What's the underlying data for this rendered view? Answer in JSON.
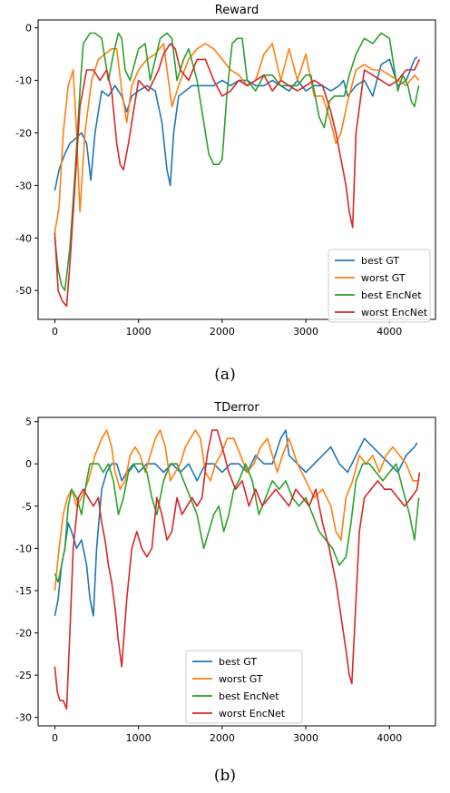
{
  "chart_data": [
    {
      "type": "line",
      "title": "Reward",
      "caption": "(a)",
      "xlim": [
        -200,
        4550
      ],
      "ylim": [
        -55.5,
        1.5
      ],
      "xticks": [
        0,
        1000,
        2000,
        3000,
        4000
      ],
      "yticks": [
        0,
        -10,
        -20,
        -30,
        -40,
        -50
      ],
      "legend_position": "lower-right",
      "series": [
        {
          "name": "best GT",
          "color": "#1f77b4",
          "x": [
            0,
            50,
            120,
            180,
            250,
            320,
            380,
            430,
            480,
            560,
            640,
            720,
            800,
            860,
            920,
            1000,
            1100,
            1200,
            1280,
            1340,
            1380,
            1420,
            1480,
            1560,
            1640,
            1700,
            1800,
            1900,
            2000,
            2100,
            2200,
            2300,
            2400,
            2500,
            2600,
            2700,
            2800,
            2900,
            3000,
            3100,
            3200,
            3300,
            3400,
            3450,
            3500,
            3600,
            3700,
            3800,
            3900,
            4000,
            4100,
            4200,
            4300,
            4330
          ],
          "y": [
            -31,
            -27,
            -24,
            -22,
            -21,
            -20,
            -22,
            -29,
            -20,
            -12,
            -13,
            -11,
            -13,
            -16,
            -13,
            -12,
            -11,
            -12,
            -18,
            -27,
            -30,
            -20,
            -13,
            -12,
            -11,
            -11,
            -11,
            -11,
            -10,
            -11,
            -10,
            -10,
            -11,
            -11,
            -10,
            -11,
            -12,
            -10,
            -12,
            -11,
            -11,
            -12,
            -11,
            -10,
            -13,
            -11,
            -10,
            -13,
            -7,
            -6,
            -11,
            -10,
            -6,
            -5.5
          ]
        },
        {
          "name": "worst GT",
          "color": "#ff7f0e",
          "x": [
            0,
            50,
            100,
            160,
            220,
            260,
            300,
            360,
            440,
            520,
            600,
            680,
            740,
            800,
            860,
            920,
            1000,
            1100,
            1200,
            1300,
            1400,
            1500,
            1600,
            1700,
            1800,
            1900,
            2000,
            2100,
            2200,
            2300,
            2400,
            2500,
            2600,
            2700,
            2800,
            2900,
            3000,
            3100,
            3200,
            3300,
            3360,
            3420,
            3500,
            3600,
            3700,
            3800,
            3900,
            4000,
            4100,
            4200,
            4300,
            4350
          ],
          "y": [
            -39,
            -34,
            -20,
            -11,
            -8,
            -20,
            -35,
            -20,
            -10,
            -6,
            -5,
            -4,
            -4,
            -12,
            -18,
            -11,
            -8,
            -6,
            -5,
            -3,
            -15,
            -10,
            -6,
            -4,
            -3,
            -4,
            -6,
            -8,
            -9,
            -11,
            -10,
            -5,
            -3,
            -10,
            -4,
            -10,
            -5,
            -13,
            -13,
            -18,
            -22,
            -20,
            -14,
            -8,
            -7,
            -8,
            -8,
            -9,
            -10,
            -11,
            -9,
            -10
          ]
        },
        {
          "name": "best EncNet",
          "color": "#2ca02c",
          "x": [
            0,
            40,
            80,
            120,
            180,
            240,
            300,
            340,
            380,
            420,
            480,
            560,
            600,
            640,
            700,
            760,
            800,
            840,
            900,
            1000,
            1080,
            1140,
            1200,
            1260,
            1340,
            1400,
            1460,
            1540,
            1600,
            1700,
            1780,
            1840,
            1900,
            1960,
            2000,
            2060,
            2120,
            2180,
            2240,
            2300,
            2400,
            2500,
            2600,
            2700,
            2800,
            2900,
            3000,
            3060,
            3100,
            3160,
            3220,
            3280,
            3340,
            3400,
            3460,
            3520,
            3600,
            3700,
            3800,
            3900,
            4000,
            4100,
            4160,
            4220,
            4260,
            4300,
            4350
          ],
          "y": [
            -40,
            -46,
            -49,
            -50,
            -42,
            -28,
            -12,
            -3,
            -2,
            -1,
            -1,
            -2,
            -6,
            -10,
            -5,
            -1,
            -2,
            -8,
            -10,
            -4,
            -3,
            -10,
            -6,
            -2,
            -1,
            -2,
            -10,
            -6,
            -4,
            -10,
            -18,
            -24,
            -26,
            -26,
            -25,
            -12,
            -3,
            -2,
            -2,
            -10,
            -12,
            -9,
            -9,
            -11,
            -11,
            -11,
            -9,
            -9,
            -12,
            -17,
            -19,
            -14,
            -13,
            -13,
            -13,
            -9,
            -5,
            -2,
            -3,
            -1,
            -2,
            -12,
            -9,
            -11,
            -14,
            -15,
            -11
          ]
        },
        {
          "name": "worst EncNet",
          "color": "#d62728",
          "x": [
            0,
            40,
            90,
            140,
            180,
            240,
            300,
            380,
            460,
            540,
            620,
            680,
            740,
            780,
            820,
            880,
            940,
            1000,
            1060,
            1120,
            1180,
            1240,
            1300,
            1380,
            1440,
            1500,
            1600,
            1700,
            1800,
            1900,
            2000,
            2100,
            2200,
            2300,
            2400,
            2500,
            2600,
            2700,
            2800,
            2900,
            3000,
            3100,
            3200,
            3300,
            3360,
            3420,
            3480,
            3520,
            3560,
            3600,
            3700,
            3800,
            3900,
            4000,
            4100,
            4200,
            4300,
            4360
          ],
          "y": [
            -39,
            -50,
            -52,
            -53,
            -45,
            -30,
            -15,
            -8,
            -8,
            -10,
            -8,
            -12,
            -22,
            -26,
            -27,
            -22,
            -16,
            -10,
            -11,
            -12,
            -10,
            -8,
            -5,
            -3,
            -4,
            -8,
            -10,
            -6,
            -6,
            -10,
            -13,
            -12,
            -10,
            -11,
            -10,
            -9,
            -12,
            -10,
            -11,
            -12,
            -11,
            -10,
            -11,
            -16,
            -20,
            -25,
            -30,
            -35,
            -38,
            -20,
            -8,
            -9,
            -10,
            -11,
            -10,
            -8,
            -8,
            -6
          ]
        }
      ]
    },
    {
      "type": "line",
      "title": "TDerror",
      "caption": "(b)",
      "xlim": [
        -200,
        4550
      ],
      "ylim": [
        -31,
        5.5
      ],
      "xticks": [
        0,
        1000,
        2000,
        3000,
        4000
      ],
      "yticks": [
        5,
        0,
        -5,
        -10,
        -15,
        -20,
        -25,
        -30
      ],
      "legend_position": "lower-center",
      "series": [
        {
          "name": "best GT",
          "color": "#1f77b4",
          "x": [
            0,
            40,
            80,
            120,
            160,
            200,
            260,
            320,
            380,
            420,
            460,
            500,
            560,
            620,
            680,
            740,
            800,
            860,
            940,
            1000,
            1100,
            1200,
            1300,
            1400,
            1500,
            1600,
            1700,
            1800,
            1900,
            2000,
            2100,
            2200,
            2300,
            2400,
            2500,
            2600,
            2700,
            2760,
            2800,
            2900,
            3000,
            3100,
            3200,
            3300,
            3400,
            3500,
            3600,
            3700,
            3800,
            3900,
            4000,
            4100,
            4200,
            4300,
            4330
          ],
          "y": [
            -18,
            -16,
            -12,
            -10,
            -7,
            -8,
            -10,
            -9,
            -12,
            -16,
            -18,
            -10,
            -3,
            -1,
            0,
            0,
            -2,
            -1,
            0,
            -1,
            0,
            0,
            -1,
            0,
            -1,
            0,
            -2,
            0,
            0,
            -1,
            0,
            0,
            -1,
            1,
            0,
            0,
            3,
            4,
            1,
            0,
            -1,
            0,
            1,
            2,
            0,
            -1,
            1,
            3,
            2,
            1,
            0,
            -1,
            1,
            2,
            2.5
          ]
        },
        {
          "name": "worst GT",
          "color": "#ff7f0e",
          "x": [
            0,
            50,
            100,
            150,
            200,
            260,
            320,
            400,
            480,
            560,
            620,
            680,
            720,
            780,
            840,
            900,
            960,
            1020,
            1080,
            1140,
            1200,
            1260,
            1320,
            1380,
            1440,
            1500,
            1560,
            1620,
            1680,
            1740,
            1800,
            1860,
            1920,
            1980,
            2060,
            2140,
            2220,
            2300,
            2380,
            2460,
            2540,
            2600,
            2660,
            2720,
            2800,
            2900,
            3000,
            3100,
            3200,
            3300,
            3360,
            3420,
            3480,
            3560,
            3640,
            3720,
            3800,
            3880,
            3960,
            4040,
            4120,
            4200,
            4280,
            4350
          ],
          "y": [
            -15,
            -10,
            -6,
            -4,
            -3,
            -5,
            -4,
            -2,
            1,
            3,
            4,
            2,
            -1,
            -3,
            -2,
            1,
            2,
            1,
            -1,
            1,
            3,
            4,
            2,
            -2,
            -1,
            0,
            2,
            3,
            4,
            3,
            -1,
            -2,
            0,
            1,
            3,
            3,
            1,
            -1,
            0,
            2,
            3,
            1,
            -1,
            1,
            3,
            0,
            -2,
            -4,
            -3,
            -5,
            -8,
            -9,
            -4,
            -2,
            1,
            0,
            1,
            -1,
            1,
            2,
            1,
            0,
            -2,
            -2
          ]
        },
        {
          "name": "best EncNet",
          "color": "#2ca02c",
          "x": [
            0,
            40,
            80,
            120,
            160,
            200,
            260,
            320,
            380,
            420,
            460,
            520,
            580,
            640,
            700,
            760,
            820,
            880,
            960,
            1040,
            1100,
            1160,
            1220,
            1300,
            1380,
            1460,
            1540,
            1620,
            1700,
            1780,
            1840,
            1900,
            1960,
            2020,
            2080,
            2140,
            2200,
            2280,
            2360,
            2440,
            2520,
            2600,
            2680,
            2760,
            2840,
            2920,
            3000,
            3080,
            3160,
            3240,
            3320,
            3400,
            3480,
            3540,
            3600,
            3680,
            3760,
            3840,
            3920,
            4000,
            4080,
            4160,
            4240,
            4300,
            4350
          ],
          "y": [
            -13,
            -14,
            -12,
            -10,
            -5,
            -3,
            -4,
            -6,
            -2,
            0,
            0,
            0,
            -1,
            0,
            -2,
            -6,
            -4,
            -1,
            0,
            0,
            -1,
            -4,
            -6,
            -2,
            0,
            0,
            -2,
            -4,
            -6,
            -10,
            -8,
            -6,
            -5,
            -8,
            -6,
            -3,
            -2,
            0,
            -2,
            -6,
            -4,
            -2,
            -3,
            -2,
            -4,
            -5,
            -4,
            -6,
            -8,
            -9,
            -10,
            -12,
            -11,
            -7,
            -2,
            0,
            0,
            -1,
            -2,
            -1,
            0,
            -3,
            -6,
            -9,
            -4
          ]
        },
        {
          "name": "worst EncNet",
          "color": "#d62728",
          "x": [
            0,
            30,
            60,
            100,
            140,
            180,
            220,
            280,
            340,
            400,
            460,
            520,
            560,
            600,
            640,
            680,
            720,
            760,
            800,
            860,
            920,
            980,
            1040,
            1100,
            1160,
            1220,
            1280,
            1340,
            1400,
            1460,
            1520,
            1580,
            1640,
            1700,
            1760,
            1820,
            1880,
            1940,
            2000,
            2080,
            2160,
            2240,
            2320,
            2400,
            2480,
            2560,
            2640,
            2720,
            2800,
            2880,
            2960,
            3040,
            3120,
            3200,
            3280,
            3360,
            3420,
            3480,
            3520,
            3550,
            3580,
            3640,
            3700,
            3780,
            3860,
            3940,
            4020,
            4100,
            4180,
            4260,
            4330,
            4360
          ],
          "y": [
            -24,
            -27,
            -28,
            -28,
            -29,
            -20,
            -10,
            -4,
            -3,
            -4,
            -5,
            -4,
            -7,
            -9,
            -12,
            -14,
            -17,
            -21,
            -24,
            -16,
            -10,
            -8,
            -10,
            -11,
            -10,
            -4,
            -6,
            -9,
            -8,
            -4,
            -6,
            -5,
            -4,
            -5,
            -4,
            1,
            4,
            4,
            2,
            -1,
            -3,
            -2,
            -5,
            -3,
            -5,
            -4,
            -3,
            -4,
            -5,
            -3,
            -4,
            -5,
            -3,
            -7,
            -10,
            -14,
            -18,
            -22,
            -25,
            -26,
            -20,
            -8,
            -4,
            -3,
            -2,
            -3,
            -3,
            -4,
            -5,
            -4,
            -3,
            -1
          ]
        }
      ]
    }
  ]
}
